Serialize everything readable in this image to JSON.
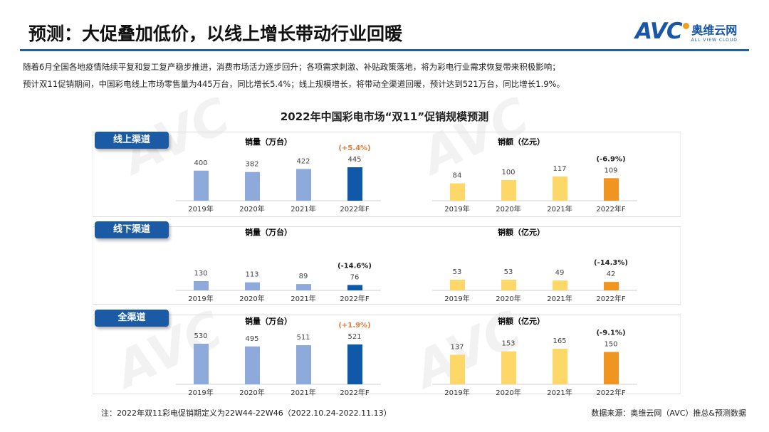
{
  "header": {
    "title": "预测：大促叠加低价，以线上增长带动行业回暖",
    "logo_text": "AVC",
    "logo_cn": "奥维云网",
    "logo_en": "ALL VIEW CLOUD"
  },
  "intro": [
    "随着6月全国各地疫情陆续平复和复工复产稳步推进，消费市场活力逐步回升；各项需求刺激、补贴政策落地，将为彩电行业需求恢复带来积极影响；",
    "预计双11促销期间，中国彩电线上市场零售量为445万台，同比增长5.4%；线上规模增长，将带动全渠道回暖，预计达到521万台，同比增长1.9%。"
  ],
  "chart_title": "2022年中国彩电市场“双11”促销规模预测",
  "panels": [
    "线上渠道",
    "线下渠道",
    "全渠道"
  ],
  "colors": {
    "volume": "#8eaadb",
    "volume_forecast": "#0f59a8",
    "value": "#fdd868",
    "value_forecast": "#f0951f",
    "growth_up": "#e07b39",
    "growth_down": "#222222",
    "brand": "#1b5aa5"
  },
  "chart_data": [
    {
      "type": "bar",
      "panel": "线上渠道",
      "title": "销量（万台）",
      "categories": [
        "2019年",
        "2020年",
        "2021年",
        "2022年F"
      ],
      "values": [
        400,
        382,
        422,
        445
      ],
      "annotation": "(+5.4%)"
    },
    {
      "type": "bar",
      "panel": "线上渠道",
      "title": "销额（亿元）",
      "categories": [
        "2019年",
        "2020年",
        "2021年",
        "2022年F"
      ],
      "values": [
        84,
        100,
        117,
        109
      ],
      "annotation": "(-6.9%)"
    },
    {
      "type": "bar",
      "panel": "线下渠道",
      "title": "销量（万台）",
      "categories": [
        "2019年",
        "2020年",
        "2021年",
        "2022年F"
      ],
      "values": [
        130,
        113,
        89,
        76
      ],
      "annotation": "(-14.6%)"
    },
    {
      "type": "bar",
      "panel": "线下渠道",
      "title": "销额（亿元）",
      "categories": [
        "2019年",
        "2020年",
        "2021年",
        "2022年F"
      ],
      "values": [
        53,
        53,
        49,
        42
      ],
      "annotation": "(-14.3%)"
    },
    {
      "type": "bar",
      "panel": "全渠道",
      "title": "销量（万台）",
      "categories": [
        "2019年",
        "2020年",
        "2021年",
        "2022年F"
      ],
      "values": [
        530,
        495,
        511,
        521
      ],
      "annotation": "(+1.9%)"
    },
    {
      "type": "bar",
      "panel": "全渠道",
      "title": "销额（亿元）",
      "categories": [
        "2019年",
        "2020年",
        "2021年",
        "2022年F"
      ],
      "values": [
        137,
        153,
        165,
        150
      ],
      "annotation": "(-9.1%)"
    }
  ],
  "footer": {
    "note": "注：2022年双11彩电促销期定义为22W44-22W46（2022.10.24-2022.11.13）",
    "source": "数据来源：奥维云网（AVC）推总&预测数据"
  }
}
